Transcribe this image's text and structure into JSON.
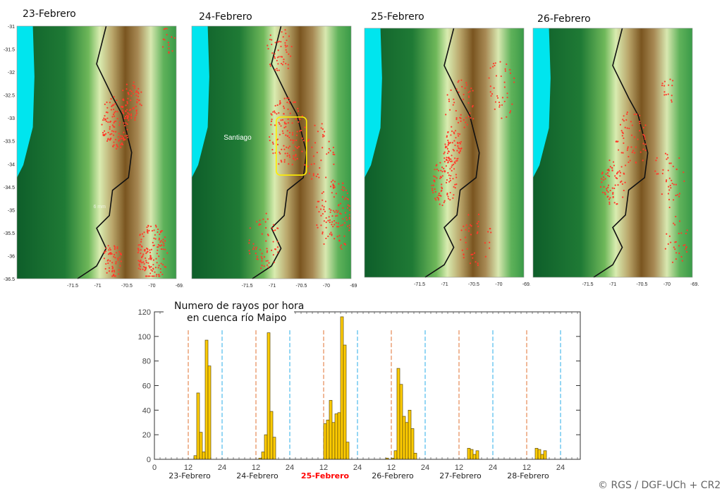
{
  "maps": [
    {
      "title": "23-Febrero",
      "show_lat": true,
      "note": "6 mm"
    },
    {
      "title": "24-Febrero",
      "show_lat": false,
      "city_label": "Santiago",
      "highlight_box": true
    },
    {
      "title": "25-Febrero",
      "show_lat": false
    },
    {
      "title": "26-Febrero",
      "show_lat": false
    }
  ],
  "map_axes": {
    "lat_ticks": [
      "-31",
      "-31.5",
      "-32",
      "-32.5",
      "-33",
      "-33.5",
      "-34",
      "-34.5",
      "-35",
      "-35.5",
      "-36",
      "-36.5"
    ],
    "lon_ticks": [
      "-71.5",
      "-71",
      "-70.5",
      "-70",
      "-69.5"
    ]
  },
  "colors": {
    "bar": "#ffcc00",
    "noon_line": "#e07030",
    "midnight_line": "#2aaee8",
    "sea": "#00e5ee",
    "highlight": "#ffee00",
    "lightning": "#ff3a2a",
    "red_label": "#ff0000"
  },
  "chart_data": {
    "type": "bar",
    "title_line1": "Numero de rayos por hora",
    "title_line2": "en cuenca río Maipo",
    "xlabel": "",
    "ylabel": "",
    "xlim": [
      0,
      151
    ],
    "ylim": [
      0,
      120
    ],
    "y_ticks": [
      "0",
      "20",
      "40",
      "60",
      "80",
      "100",
      "120"
    ],
    "x_ticks": [
      {
        "hour": 0,
        "label": "0"
      },
      {
        "hour": 12,
        "label": "12"
      },
      {
        "hour": 24,
        "label": "24"
      },
      {
        "hour": 36,
        "label": "12"
      },
      {
        "hour": 48,
        "label": "24"
      },
      {
        "hour": 60,
        "label": "12"
      },
      {
        "hour": 72,
        "label": "24"
      },
      {
        "hour": 84,
        "label": "12"
      },
      {
        "hour": 96,
        "label": "24"
      },
      {
        "hour": 108,
        "label": "12"
      },
      {
        "hour": 120,
        "label": "24"
      },
      {
        "hour": 132,
        "label": "12"
      },
      {
        "hour": 144,
        "label": "24"
      }
    ],
    "day_labels": [
      {
        "label": "23-Febrero",
        "center_hour": 12,
        "highlight": false
      },
      {
        "label": "24-Febrero",
        "center_hour": 36,
        "highlight": false
      },
      {
        "label": "25-Febrero",
        "center_hour": 60,
        "highlight": true
      },
      {
        "label": "26-Febrero",
        "center_hour": 84,
        "highlight": false
      },
      {
        "label": "27-Febrero",
        "center_hour": 108,
        "highlight": false
      },
      {
        "label": "28-Febrero",
        "center_hour": 132,
        "highlight": false
      }
    ],
    "noon_lines": [
      12,
      36,
      60,
      84,
      108,
      132
    ],
    "midnight_lines": [
      24,
      48,
      72,
      96,
      120,
      144
    ],
    "bars": [
      {
        "hour": 14,
        "value": 3
      },
      {
        "hour": 15,
        "value": 54
      },
      {
        "hour": 16,
        "value": 22
      },
      {
        "hour": 17,
        "value": 6
      },
      {
        "hour": 18,
        "value": 97
      },
      {
        "hour": 19,
        "value": 76
      },
      {
        "hour": 37,
        "value": 1
      },
      {
        "hour": 38,
        "value": 6
      },
      {
        "hour": 39,
        "value": 20
      },
      {
        "hour": 40,
        "value": 103
      },
      {
        "hour": 41,
        "value": 39
      },
      {
        "hour": 42,
        "value": 18
      },
      {
        "hour": 60,
        "value": 29
      },
      {
        "hour": 61,
        "value": 32
      },
      {
        "hour": 62,
        "value": 48
      },
      {
        "hour": 63,
        "value": 30
      },
      {
        "hour": 64,
        "value": 37
      },
      {
        "hour": 65,
        "value": 38
      },
      {
        "hour": 66,
        "value": 116
      },
      {
        "hour": 67,
        "value": 93
      },
      {
        "hour": 68,
        "value": 14
      },
      {
        "hour": 82,
        "value": 1
      },
      {
        "hour": 84,
        "value": 1
      },
      {
        "hour": 85,
        "value": 7
      },
      {
        "hour": 86,
        "value": 74
      },
      {
        "hour": 87,
        "value": 61
      },
      {
        "hour": 88,
        "value": 35
      },
      {
        "hour": 89,
        "value": 30
      },
      {
        "hour": 90,
        "value": 40
      },
      {
        "hour": 91,
        "value": 25
      },
      {
        "hour": 92,
        "value": 5
      },
      {
        "hour": 111,
        "value": 9
      },
      {
        "hour": 112,
        "value": 8
      },
      {
        "hour": 113,
        "value": 4
      },
      {
        "hour": 114,
        "value": 7
      },
      {
        "hour": 135,
        "value": 9
      },
      {
        "hour": 136,
        "value": 8
      },
      {
        "hour": 137,
        "value": 4
      },
      {
        "hour": 138,
        "value": 7
      }
    ]
  },
  "credit": "© RGS / DGF-UCh + CR2"
}
